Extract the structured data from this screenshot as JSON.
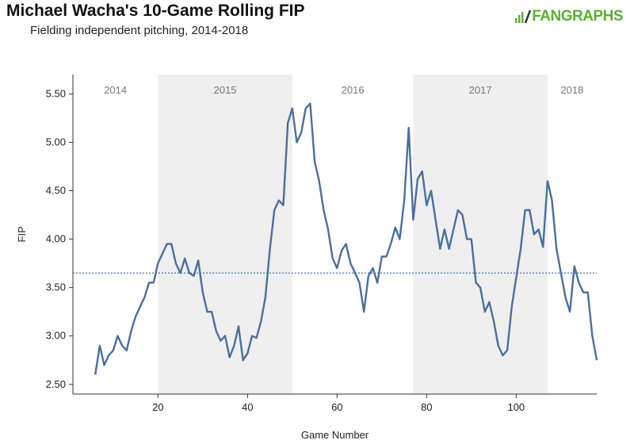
{
  "brand": {
    "name": "FANGRAPHS",
    "icon": "fangraphs-logo-icon",
    "color": "#5bb030"
  },
  "chart_data": {
    "type": "line",
    "title": "Michael Wacha's 10-Game Rolling FIP",
    "subtitle": "Fielding independent pitching, 2014-2018",
    "xlabel": "Game Number",
    "ylabel": "FIP",
    "xlim": [
      1,
      118
    ],
    "ylim": [
      2.4,
      5.7
    ],
    "xticks": [
      20,
      40,
      60,
      80,
      100
    ],
    "yticks": [
      "2.50",
      "3.00",
      "3.50",
      "4.00",
      "4.50",
      "5.00",
      "5.50"
    ],
    "grid": false,
    "reference_line": {
      "y": 3.65,
      "style": "dotted"
    },
    "line_color": "#4a6fa0",
    "season_bands": [
      {
        "label": "2014",
        "start": 1,
        "end": 20,
        "shaded": false
      },
      {
        "label": "2015",
        "start": 20,
        "end": 50,
        "shaded": true
      },
      {
        "label": "2016",
        "start": 50,
        "end": 77,
        "shaded": false
      },
      {
        "label": "2017",
        "start": 77,
        "end": 107,
        "shaded": true
      },
      {
        "label": "2018",
        "start": 107,
        "end": 118,
        "shaded": false
      }
    ],
    "series": [
      {
        "x": [
          6,
          7,
          8,
          9,
          10,
          11,
          12,
          13,
          14,
          15,
          16,
          17,
          18,
          19,
          20,
          21,
          22,
          23,
          24,
          25,
          26,
          27,
          28,
          29,
          30,
          31,
          32,
          33,
          34,
          35,
          36,
          37,
          38,
          39,
          40,
          41,
          42,
          43,
          44,
          45,
          46,
          47,
          48,
          49,
          50,
          51,
          52,
          53,
          54,
          55,
          56,
          57,
          58,
          59,
          60,
          61,
          62,
          63,
          64,
          65,
          66,
          67,
          68,
          69,
          70,
          71,
          72,
          73,
          74,
          75,
          76,
          77,
          78,
          79,
          80,
          81,
          82,
          83,
          84,
          85,
          86,
          87,
          88,
          89,
          90,
          91,
          92,
          93,
          94,
          95,
          96,
          97,
          98,
          99,
          100,
          101,
          102,
          103,
          104,
          105,
          106,
          107,
          108,
          109,
          110,
          111,
          112,
          113,
          114,
          115,
          116,
          117,
          118
        ],
        "values": [
          2.6,
          2.9,
          2.7,
          2.8,
          2.85,
          3.0,
          2.9,
          2.85,
          3.05,
          3.2,
          3.3,
          3.4,
          3.55,
          3.55,
          3.75,
          3.85,
          3.95,
          3.95,
          3.75,
          3.65,
          3.8,
          3.65,
          3.62,
          3.78,
          3.45,
          3.25,
          3.25,
          3.05,
          2.95,
          3.0,
          2.78,
          2.9,
          3.1,
          2.75,
          2.82,
          3.0,
          2.98,
          3.15,
          3.4,
          3.9,
          4.3,
          4.4,
          4.35,
          5.2,
          5.35,
          5.0,
          5.1,
          5.35,
          5.4,
          4.8,
          4.6,
          4.3,
          4.1,
          3.8,
          3.7,
          3.88,
          3.95,
          3.75,
          3.65,
          3.55,
          3.25,
          3.62,
          3.7,
          3.55,
          3.82,
          3.82,
          3.95,
          4.12,
          4.0,
          4.4,
          5.15,
          4.2,
          4.62,
          4.7,
          4.35,
          4.5,
          4.2,
          3.9,
          4.1,
          3.9,
          4.1,
          4.3,
          4.25,
          4.0,
          4.0,
          3.55,
          3.5,
          3.25,
          3.35,
          3.15,
          2.9,
          2.8,
          2.85,
          3.3,
          3.6,
          3.9,
          4.3,
          4.3,
          4.05,
          4.1,
          3.92,
          4.6,
          4.4,
          3.9,
          3.65,
          3.4,
          3.25,
          3.72,
          3.55,
          3.45,
          3.45,
          3.0,
          2.75
        ]
      }
    ]
  }
}
